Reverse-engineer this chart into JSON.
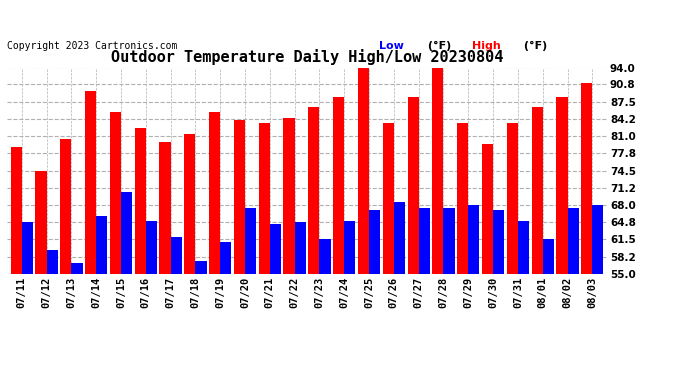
{
  "title": "Outdoor Temperature Daily High/Low 20230804",
  "copyright": "Copyright 2023 Cartronics.com",
  "dates": [
    "07/11",
    "07/12",
    "07/13",
    "07/14",
    "07/15",
    "07/16",
    "07/17",
    "07/18",
    "07/19",
    "07/20",
    "07/21",
    "07/22",
    "07/23",
    "07/24",
    "07/25",
    "07/26",
    "07/27",
    "07/28",
    "07/29",
    "07/30",
    "07/31",
    "08/01",
    "08/02",
    "08/03"
  ],
  "highs": [
    79.0,
    74.5,
    80.5,
    89.5,
    85.5,
    82.5,
    80.0,
    81.5,
    85.5,
    84.0,
    83.5,
    84.5,
    86.5,
    88.5,
    94.0,
    83.5,
    88.5,
    94.0,
    83.5,
    79.5,
    83.5,
    86.5,
    88.5,
    91.0
  ],
  "lows": [
    64.8,
    59.5,
    57.0,
    66.0,
    70.5,
    65.0,
    62.0,
    57.5,
    61.0,
    67.5,
    64.5,
    64.8,
    61.5,
    65.0,
    67.0,
    68.5,
    67.5,
    67.5,
    68.0,
    67.0,
    65.0,
    61.5,
    67.5,
    68.0
  ],
  "ylim": [
    55.0,
    94.0
  ],
  "yticks": [
    55.0,
    58.2,
    61.5,
    64.8,
    68.0,
    71.2,
    74.5,
    77.8,
    81.0,
    84.2,
    87.5,
    90.8,
    94.0
  ],
  "high_color": "#ff0000",
  "low_color": "#0000ff",
  "background_color": "#ffffff",
  "grid_color": "#b0b0b0",
  "title_fontsize": 11,
  "tick_fontsize": 7.5,
  "copyright_fontsize": 7,
  "legend_fontsize": 8
}
